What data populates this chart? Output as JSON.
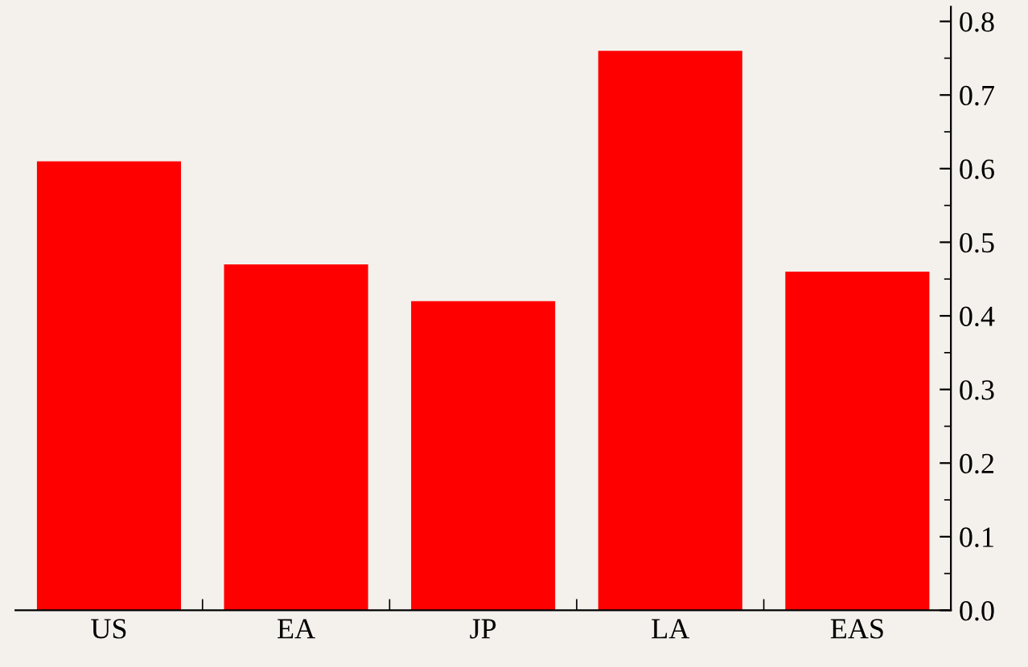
{
  "chart_data": {
    "type": "bar",
    "categories": [
      "US",
      "EA",
      "JP",
      "LA",
      "EAS"
    ],
    "values": [
      0.61,
      0.47,
      0.42,
      0.76,
      0.46
    ],
    "color": "#ff0000",
    "ylim": [
      0,
      0.82
    ],
    "yticks": [
      {
        "value": 0,
        "label": "0.0"
      },
      0.1,
      0.2,
      0.3,
      0.4,
      0.5,
      0.6,
      0.7,
      0.8
    ],
    "grid": false,
    "legend": false
  }
}
